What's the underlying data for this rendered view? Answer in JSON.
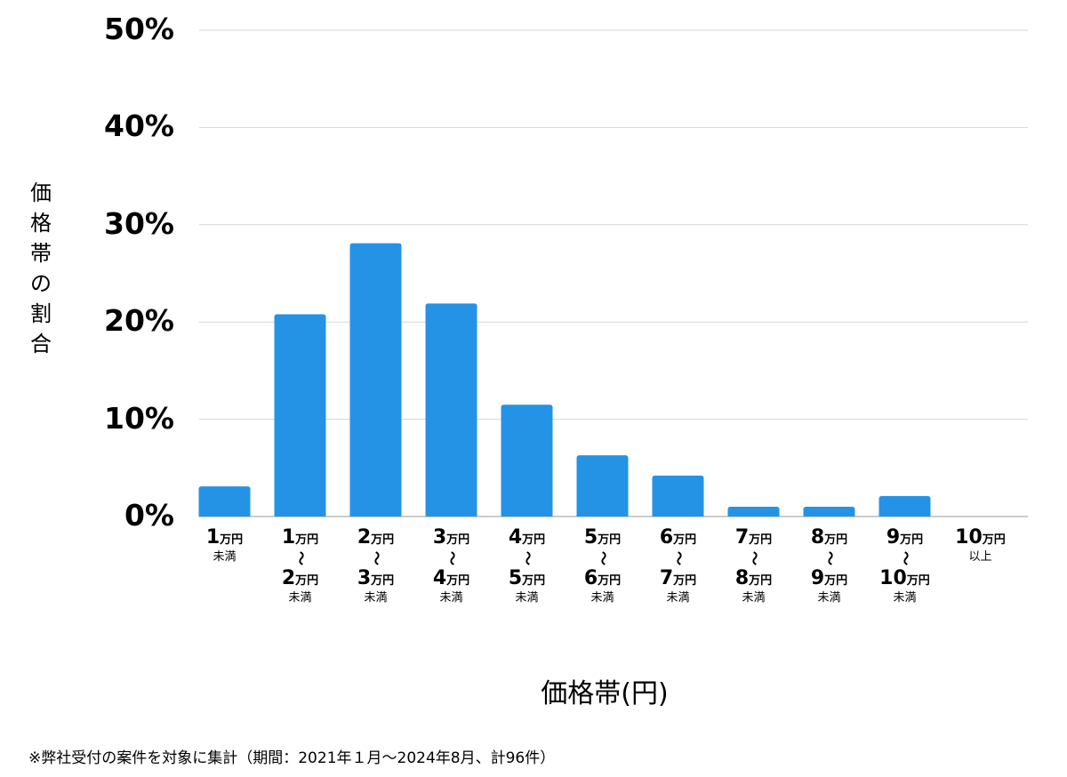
{
  "chart_data": {
    "type": "bar",
    "xlabel": "価格帯(円)",
    "ylabel": "価格帯の割合",
    "ylim": [
      0,
      50
    ],
    "yticks": [
      "0%",
      "10%",
      "20%",
      "30%",
      "40%",
      "50%"
    ],
    "grid": true,
    "bar_color": "#2493e6",
    "categories": [
      "1万円未満",
      "1万円〜2万円未満",
      "2万円〜3万円未満",
      "3万円〜4万円未満",
      "4万円〜5万円未満",
      "5万円〜6万円未満",
      "6万円〜7万円未満",
      "7万円〜8万円未満",
      "8万円〜9万円未満",
      "9万円〜10万円未満",
      "10万円以上"
    ],
    "category_labels": [
      {
        "from": "1",
        "unit": "万円",
        "suffix": "未満"
      },
      {
        "from": "1",
        "unit": "万円",
        "tilde": "〜",
        "to": "2",
        "suffix": "未満"
      },
      {
        "from": "2",
        "unit": "万円",
        "tilde": "〜",
        "to": "3",
        "suffix": "未満"
      },
      {
        "from": "3",
        "unit": "万円",
        "tilde": "〜",
        "to": "4",
        "suffix": "未満"
      },
      {
        "from": "4",
        "unit": "万円",
        "tilde": "〜",
        "to": "5",
        "suffix": "未満"
      },
      {
        "from": "5",
        "unit": "万円",
        "tilde": "〜",
        "to": "6",
        "suffix": "未満"
      },
      {
        "from": "6",
        "unit": "万円",
        "tilde": "〜",
        "to": "7",
        "suffix": "未満"
      },
      {
        "from": "7",
        "unit": "万円",
        "tilde": "〜",
        "to": "8",
        "suffix": "未満"
      },
      {
        "from": "8",
        "unit": "万円",
        "tilde": "〜",
        "to": "9",
        "suffix": "未満"
      },
      {
        "from": "9",
        "unit": "万円",
        "tilde": "〜",
        "to": "10",
        "suffix": "未満"
      },
      {
        "from": "10",
        "unit": "万円",
        "suffix": "以上"
      }
    ],
    "values": [
      3.1,
      20.8,
      28.1,
      21.9,
      11.5,
      6.3,
      4.2,
      1.0,
      1.0,
      2.1,
      0
    ]
  },
  "note": "※弊社受付の案件を対象に集計（期間：2021年１月〜2024年8月、計96件）"
}
